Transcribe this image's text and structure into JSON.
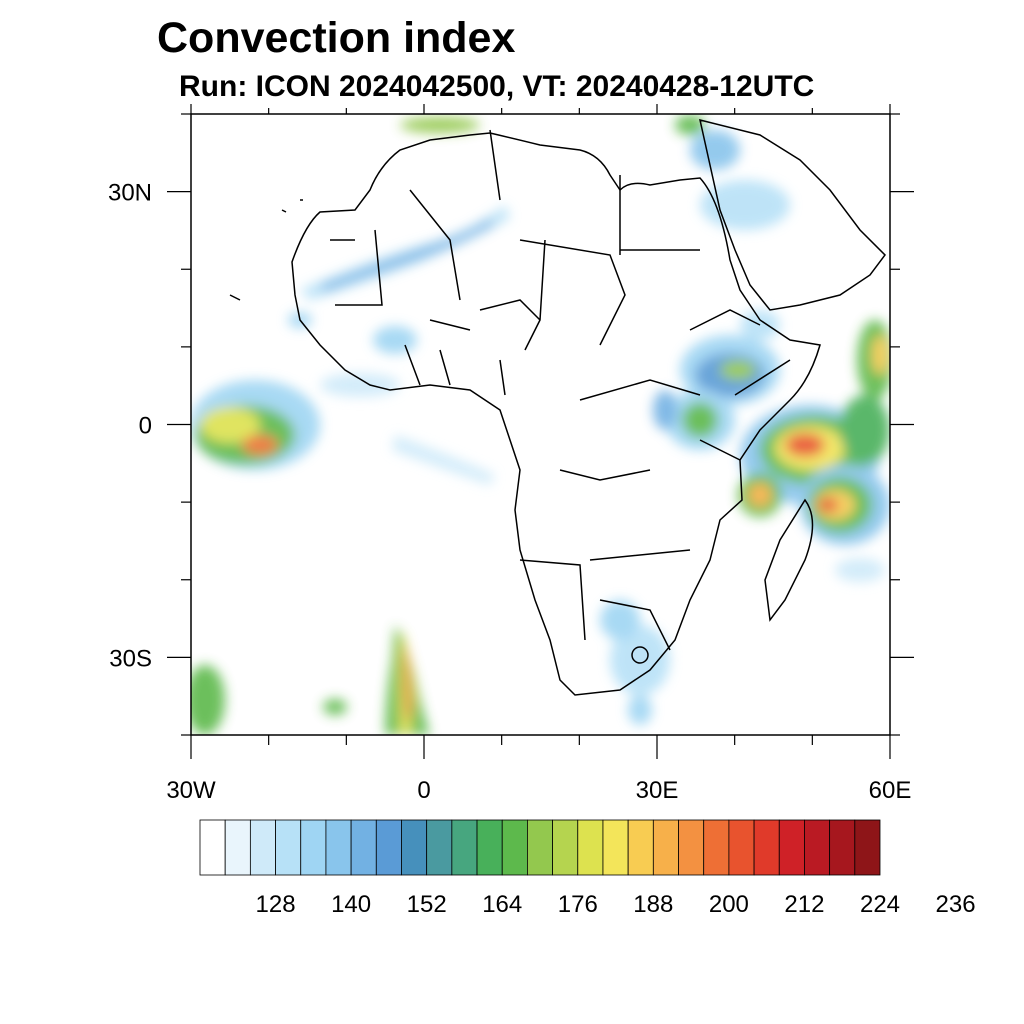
{
  "title": "Convection index",
  "subtitle": "Run: ICON 2024042500,  VT: 20240428-12UTC",
  "lon_ticks": [
    {
      "value": -30,
      "label": "30W"
    },
    {
      "value": 0,
      "label": "0"
    },
    {
      "value": 30,
      "label": "30E"
    },
    {
      "value": 60,
      "label": "60E"
    }
  ],
  "lat_ticks": [
    {
      "value": 30,
      "label": "30N"
    },
    {
      "value": 0,
      "label": "0"
    },
    {
      "value": -30,
      "label": "30S"
    }
  ],
  "map_extent": {
    "lon_min": -30,
    "lon_max": 60,
    "lat_min": -40,
    "lat_max": 40
  },
  "colorbar": {
    "colors": [
      "#ffffff",
      "#e9f5fc",
      "#cfeaf9",
      "#b7e1f7",
      "#9fd5f3",
      "#89c5ec",
      "#72b1e3",
      "#5a9bd6",
      "#4690bc",
      "#4a9aa0",
      "#47a67f",
      "#48b05a",
      "#5db94c",
      "#93c84e",
      "#b5d44f",
      "#dde24f",
      "#f3e55a",
      "#f8cc52",
      "#f7b04a",
      "#f39141",
      "#ee6f35",
      "#e8532e",
      "#e03a2a",
      "#cf2127",
      "#ba1a23",
      "#a6171e",
      "#8e1518"
    ],
    "labels": [
      "128",
      "140",
      "152",
      "164",
      "176",
      "188",
      "200",
      "212",
      "224",
      "236"
    ],
    "label_values": [
      128,
      140,
      152,
      164,
      176,
      188,
      200,
      212,
      224,
      236
    ]
  },
  "colors": {
    "coast": "#000000",
    "frame": "#000000"
  }
}
